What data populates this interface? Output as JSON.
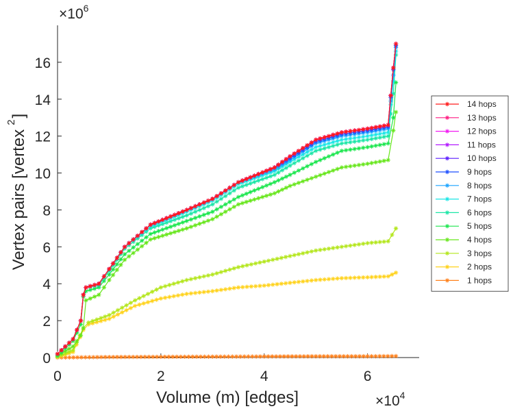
{
  "chart_data": {
    "type": "line",
    "title": "",
    "xlabel": "Volume (m) [edges]",
    "ylabel": "Vertex pairs [vertex",
    "ylabel_sup": "2",
    "ylabel_close": "]",
    "x_multiplier_base": "×10",
    "x_multiplier_exp": "4",
    "y_multiplier_base": "×10",
    "y_multiplier_exp": "6",
    "xlim": [
      0,
      7
    ],
    "ylim": [
      0,
      18
    ],
    "xticks": [
      0,
      2,
      4,
      6
    ],
    "yticks": [
      0,
      2,
      4,
      6,
      8,
      10,
      12,
      14,
      16
    ],
    "legend_position": "outside-right",
    "series": [
      {
        "name": "14 hops",
        "color": "#ff1a1a",
        "points": [
          [
            0,
            0.2
          ],
          [
            0.3,
            1.0
          ],
          [
            0.45,
            2.0
          ],
          [
            0.5,
            3.4
          ],
          [
            0.55,
            3.8
          ],
          [
            0.8,
            4.0
          ],
          [
            1,
            4.8
          ],
          [
            1.3,
            6.0
          ],
          [
            1.8,
            7.2
          ],
          [
            2.5,
            8.0
          ],
          [
            3,
            8.6
          ],
          [
            3.5,
            9.5
          ],
          [
            4.2,
            10.3
          ],
          [
            4.5,
            10.9
          ],
          [
            5,
            11.8
          ],
          [
            5.5,
            12.2
          ],
          [
            6,
            12.4
          ],
          [
            6.4,
            12.6
          ],
          [
            6.45,
            14.2
          ],
          [
            6.5,
            15.7
          ],
          [
            6.55,
            17.0
          ]
        ]
      },
      {
        "name": "13 hops",
        "color": "#ff1a80",
        "points": [
          [
            0,
            0.2
          ],
          [
            0.3,
            1.0
          ],
          [
            0.45,
            2.0
          ],
          [
            0.5,
            3.4
          ],
          [
            0.55,
            3.8
          ],
          [
            0.8,
            4.0
          ],
          [
            1,
            4.8
          ],
          [
            1.3,
            6.0
          ],
          [
            1.8,
            7.2
          ],
          [
            2.5,
            8.0
          ],
          [
            3,
            8.6
          ],
          [
            3.5,
            9.5
          ],
          [
            4.2,
            10.3
          ],
          [
            4.5,
            10.9
          ],
          [
            5,
            11.8
          ],
          [
            5.5,
            12.2
          ],
          [
            6,
            12.4
          ],
          [
            6.4,
            12.6
          ],
          [
            6.45,
            14.2
          ],
          [
            6.5,
            15.7
          ],
          [
            6.55,
            17.0
          ]
        ]
      },
      {
        "name": "12 hops",
        "color": "#f21af2",
        "points": [
          [
            0,
            0.2
          ],
          [
            0.3,
            1.0
          ],
          [
            0.45,
            2.0
          ],
          [
            0.5,
            3.4
          ],
          [
            0.55,
            3.8
          ],
          [
            0.8,
            4.0
          ],
          [
            1,
            4.8
          ],
          [
            1.3,
            6.0
          ],
          [
            1.8,
            7.2
          ],
          [
            2.5,
            8.0
          ],
          [
            3,
            8.6
          ],
          [
            3.5,
            9.5
          ],
          [
            4.2,
            10.3
          ],
          [
            4.5,
            10.9
          ],
          [
            5,
            11.8
          ],
          [
            5.5,
            12.2
          ],
          [
            6,
            12.4
          ],
          [
            6.4,
            12.6
          ],
          [
            6.45,
            14.2
          ],
          [
            6.5,
            15.7
          ],
          [
            6.55,
            17.0
          ]
        ]
      },
      {
        "name": "11 hops",
        "color": "#b31aff",
        "points": [
          [
            0,
            0.2
          ],
          [
            0.3,
            1.0
          ],
          [
            0.45,
            2.0
          ],
          [
            0.5,
            3.4
          ],
          [
            0.55,
            3.8
          ],
          [
            0.8,
            4.0
          ],
          [
            1,
            4.8
          ],
          [
            1.3,
            6.0
          ],
          [
            1.8,
            7.2
          ],
          [
            2.5,
            8.0
          ],
          [
            3,
            8.6
          ],
          [
            3.5,
            9.5
          ],
          [
            4.2,
            10.3
          ],
          [
            4.5,
            10.9
          ],
          [
            5,
            11.8
          ],
          [
            5.5,
            12.2
          ],
          [
            6,
            12.4
          ],
          [
            6.4,
            12.6
          ],
          [
            6.45,
            14.2
          ],
          [
            6.5,
            15.7
          ],
          [
            6.55,
            17.0
          ]
        ]
      },
      {
        "name": "10 hops",
        "color": "#5a1aff",
        "points": [
          [
            0,
            0.2
          ],
          [
            0.3,
            1.0
          ],
          [
            0.45,
            2.0
          ],
          [
            0.5,
            3.4
          ],
          [
            0.55,
            3.8
          ],
          [
            0.8,
            4.0
          ],
          [
            1,
            4.8
          ],
          [
            1.3,
            6.0
          ],
          [
            1.8,
            7.2
          ],
          [
            2.5,
            8.0
          ],
          [
            3,
            8.6
          ],
          [
            3.5,
            9.5
          ],
          [
            4.2,
            10.3
          ],
          [
            4.5,
            10.9
          ],
          [
            5,
            11.8
          ],
          [
            5.5,
            12.2
          ],
          [
            6,
            12.4
          ],
          [
            6.4,
            12.6
          ],
          [
            6.45,
            14.2
          ],
          [
            6.5,
            15.7
          ],
          [
            6.55,
            17.0
          ]
        ]
      },
      {
        "name": "9 hops",
        "color": "#1a4dff",
        "points": [
          [
            0,
            0.2
          ],
          [
            0.3,
            1.0
          ],
          [
            0.45,
            2.0
          ],
          [
            0.5,
            3.4
          ],
          [
            0.55,
            3.8
          ],
          [
            0.8,
            4.0
          ],
          [
            1,
            4.8
          ],
          [
            1.3,
            6.0
          ],
          [
            1.8,
            7.2
          ],
          [
            2.5,
            8.0
          ],
          [
            3,
            8.6
          ],
          [
            3.5,
            9.5
          ],
          [
            4.2,
            10.3
          ],
          [
            4.5,
            10.8
          ],
          [
            5,
            11.7
          ],
          [
            5.5,
            12.1
          ],
          [
            6,
            12.3
          ],
          [
            6.4,
            12.5
          ],
          [
            6.45,
            14.1
          ],
          [
            6.5,
            15.6
          ],
          [
            6.55,
            16.9
          ]
        ]
      },
      {
        "name": "8 hops",
        "color": "#1aa3ff",
        "points": [
          [
            0,
            0.2
          ],
          [
            0.3,
            1.0
          ],
          [
            0.45,
            2.0
          ],
          [
            0.5,
            3.4
          ],
          [
            0.55,
            3.8
          ],
          [
            0.8,
            4.0
          ],
          [
            1,
            4.8
          ],
          [
            1.3,
            6.0
          ],
          [
            1.8,
            7.2
          ],
          [
            2.5,
            8.0
          ],
          [
            3,
            8.6
          ],
          [
            3.5,
            9.5
          ],
          [
            4.2,
            10.2
          ],
          [
            4.5,
            10.7
          ],
          [
            5,
            11.6
          ],
          [
            5.5,
            12.0
          ],
          [
            6,
            12.2
          ],
          [
            6.4,
            12.4
          ],
          [
            6.45,
            13.9
          ],
          [
            6.5,
            15.3
          ],
          [
            6.55,
            16.8
          ]
        ]
      },
      {
        "name": "7 hops",
        "color": "#1ae6e6",
        "points": [
          [
            0,
            0.2
          ],
          [
            0.3,
            1.0
          ],
          [
            0.45,
            2.0
          ],
          [
            0.5,
            3.4
          ],
          [
            0.55,
            3.8
          ],
          [
            0.8,
            4.0
          ],
          [
            1,
            4.8
          ],
          [
            1.3,
            6.0
          ],
          [
            1.8,
            7.1
          ],
          [
            2.5,
            7.9
          ],
          [
            3,
            8.5
          ],
          [
            3.5,
            9.4
          ],
          [
            4.2,
            10.1
          ],
          [
            4.5,
            10.6
          ],
          [
            5,
            11.4
          ],
          [
            5.5,
            11.8
          ],
          [
            6,
            12.0
          ],
          [
            6.4,
            12.2
          ],
          [
            6.45,
            13.7
          ],
          [
            6.5,
            15.0
          ],
          [
            6.55,
            16.6
          ]
        ]
      },
      {
        "name": "6 hops",
        "color": "#1ae6a6",
        "points": [
          [
            0,
            0.2
          ],
          [
            0.3,
            1.0
          ],
          [
            0.45,
            2.0
          ],
          [
            0.5,
            3.4
          ],
          [
            0.55,
            3.8
          ],
          [
            0.8,
            3.9
          ],
          [
            1,
            4.7
          ],
          [
            1.3,
            5.9
          ],
          [
            1.8,
            7.0
          ],
          [
            2.5,
            7.7
          ],
          [
            3,
            8.3
          ],
          [
            3.5,
            9.2
          ],
          [
            4.2,
            9.9
          ],
          [
            4.5,
            10.4
          ],
          [
            5,
            11.2
          ],
          [
            5.5,
            11.6
          ],
          [
            6,
            11.8
          ],
          [
            6.4,
            12.0
          ],
          [
            6.45,
            13.2
          ],
          [
            6.5,
            14.3
          ],
          [
            6.55,
            16.4
          ]
        ]
      },
      {
        "name": "5 hops",
        "color": "#1ae64d",
        "points": [
          [
            0,
            0.1
          ],
          [
            0.3,
            0.9
          ],
          [
            0.45,
            1.8
          ],
          [
            0.5,
            3.3
          ],
          [
            0.55,
            3.6
          ],
          [
            0.8,
            3.8
          ],
          [
            1,
            4.5
          ],
          [
            1.3,
            5.6
          ],
          [
            1.8,
            6.7
          ],
          [
            2.5,
            7.4
          ],
          [
            3,
            7.9
          ],
          [
            3.5,
            8.7
          ],
          [
            4.2,
            9.5
          ],
          [
            4.5,
            9.9
          ],
          [
            5,
            10.6
          ],
          [
            5.5,
            11.2
          ],
          [
            6,
            11.4
          ],
          [
            6.4,
            11.6
          ],
          [
            6.5,
            13.0
          ],
          [
            6.55,
            14.9
          ]
        ]
      },
      {
        "name": "4 hops",
        "color": "#66e61a",
        "points": [
          [
            0,
            0.1
          ],
          [
            0.3,
            0.6
          ],
          [
            0.45,
            1.2
          ],
          [
            0.5,
            1.6
          ],
          [
            0.55,
            3.1
          ],
          [
            0.8,
            3.4
          ],
          [
            1,
            4.2
          ],
          [
            1.3,
            5.3
          ],
          [
            1.8,
            6.4
          ],
          [
            2.5,
            7.0
          ],
          [
            3,
            7.5
          ],
          [
            3.5,
            8.3
          ],
          [
            4.2,
            8.9
          ],
          [
            4.5,
            9.3
          ],
          [
            5,
            9.8
          ],
          [
            5.5,
            10.3
          ],
          [
            6,
            10.5
          ],
          [
            6.4,
            10.7
          ],
          [
            6.5,
            12.3
          ],
          [
            6.55,
            13.3
          ]
        ]
      },
      {
        "name": "3 hops",
        "color": "#b3e61a",
        "points": [
          [
            0,
            0.05
          ],
          [
            0.3,
            0.4
          ],
          [
            0.5,
            1.6
          ],
          [
            0.6,
            1.9
          ],
          [
            1,
            2.3
          ],
          [
            1.5,
            3.1
          ],
          [
            2,
            3.8
          ],
          [
            2.5,
            4.2
          ],
          [
            3,
            4.5
          ],
          [
            3.5,
            4.9
          ],
          [
            4,
            5.2
          ],
          [
            4.5,
            5.5
          ],
          [
            5,
            5.8
          ],
          [
            5.5,
            6.0
          ],
          [
            6,
            6.2
          ],
          [
            6.4,
            6.3
          ],
          [
            6.55,
            7.0
          ]
        ]
      },
      {
        "name": "2 hops",
        "color": "#ffd21a",
        "points": [
          [
            0,
            0.02
          ],
          [
            0.3,
            0.3
          ],
          [
            0.5,
            1.5
          ],
          [
            0.6,
            1.8
          ],
          [
            1,
            2.1
          ],
          [
            1.5,
            2.8
          ],
          [
            2,
            3.2
          ],
          [
            2.5,
            3.45
          ],
          [
            3,
            3.6
          ],
          [
            3.5,
            3.8
          ],
          [
            4,
            3.9
          ],
          [
            4.5,
            4.05
          ],
          [
            5,
            4.2
          ],
          [
            5.5,
            4.3
          ],
          [
            6,
            4.35
          ],
          [
            6.4,
            4.4
          ],
          [
            6.55,
            4.6
          ]
        ]
      },
      {
        "name": "1 hops",
        "color": "#ff801a",
        "points": [
          [
            0,
            0.0
          ],
          [
            1,
            0.03
          ],
          [
            2,
            0.04
          ],
          [
            3,
            0.05
          ],
          [
            4,
            0.06
          ],
          [
            5,
            0.07
          ],
          [
            6,
            0.07
          ],
          [
            6.55,
            0.08
          ]
        ]
      }
    ]
  }
}
